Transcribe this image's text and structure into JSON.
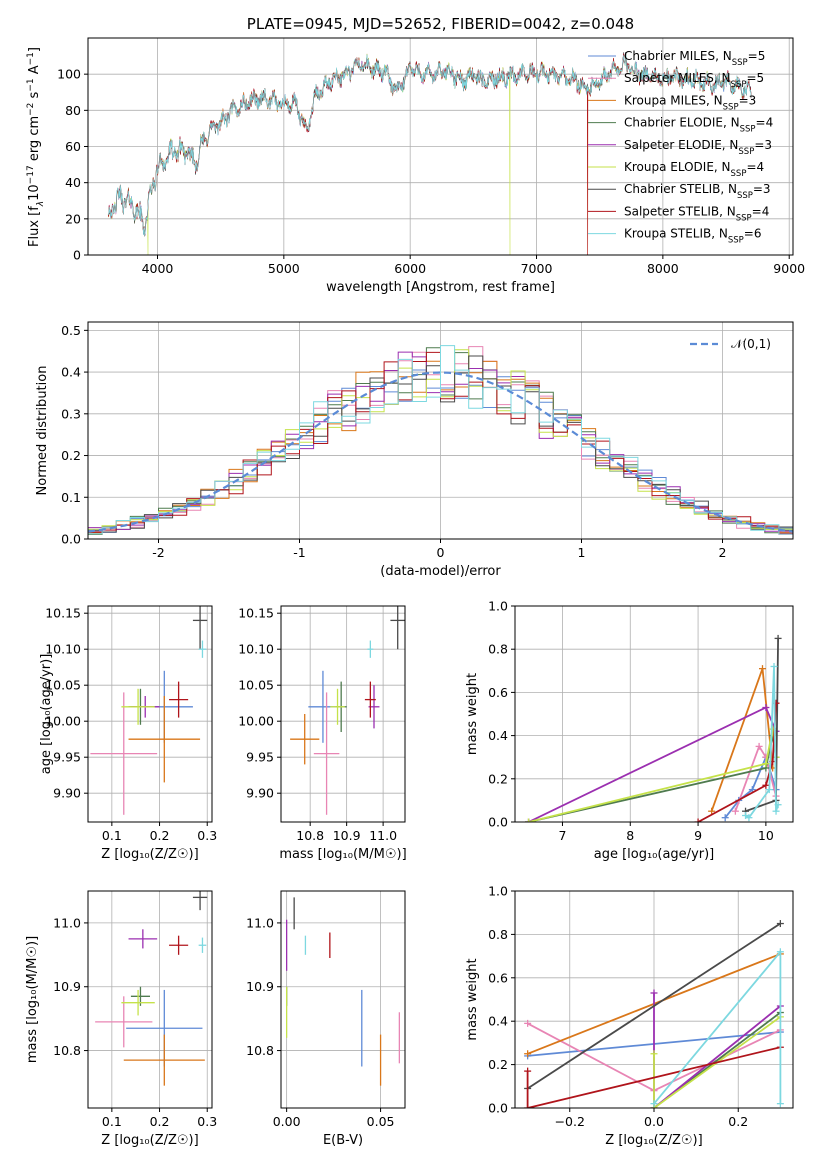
{
  "chart_data": [
    {
      "id": "spectrum",
      "type": "line",
      "title": "PLATE=0945, MJD=52652, FIBERID=0042, z=0.048",
      "xlabel": "wavelength [Angstrom, rest frame]",
      "ylabel_parts": [
        "Flux [f",
        "λ",
        "10",
        "−17",
        " erg cm",
        "−2",
        " s",
        "−1",
        " A",
        "−1",
        "]"
      ],
      "xlim": [
        3450,
        9030
      ],
      "ylim": [
        0,
        120
      ],
      "xticks": [
        4000,
        5000,
        6000,
        7000,
        8000,
        9000
      ],
      "yticks": [
        0,
        20,
        40,
        60,
        80,
        100
      ],
      "x_range_data": [
        3610,
        8700
      ],
      "anchors": [
        [
          3610,
          22
        ],
        [
          3700,
          32
        ],
        [
          3800,
          28
        ],
        [
          3900,
          17
        ],
        [
          3950,
          35
        ],
        [
          4000,
          48
        ],
        [
          4100,
          56
        ],
        [
          4200,
          58
        ],
        [
          4300,
          52
        ],
        [
          4400,
          68
        ],
        [
          4500,
          73
        ],
        [
          4600,
          80
        ],
        [
          4700,
          84
        ],
        [
          4800,
          87
        ],
        [
          4900,
          85
        ],
        [
          5000,
          84
        ],
        [
          5100,
          83
        ],
        [
          5175,
          68
        ],
        [
          5250,
          88
        ],
        [
          5400,
          98
        ],
        [
          5500,
          100
        ],
        [
          5600,
          106
        ],
        [
          5700,
          103
        ],
        [
          5800,
          101
        ],
        [
          5900,
          90
        ],
        [
          6000,
          104
        ],
        [
          6100,
          100
        ],
        [
          6200,
          100
        ],
        [
          6300,
          102
        ],
        [
          6400,
          96
        ],
        [
          6500,
          100
        ],
        [
          6560,
          96
        ],
        [
          6700,
          98
        ],
        [
          6800,
          99
        ],
        [
          7000,
          101
        ],
        [
          7100,
          100
        ],
        [
          7200,
          99
        ],
        [
          7300,
          97
        ],
        [
          7400,
          92
        ],
        [
          7500,
          95
        ],
        [
          7600,
          102
        ],
        [
          7700,
          106
        ],
        [
          7800,
          100
        ],
        [
          7900,
          99
        ],
        [
          8000,
          97
        ],
        [
          8100,
          98
        ],
        [
          8200,
          97
        ],
        [
          8300,
          96
        ],
        [
          8400,
          94
        ],
        [
          8500,
          96
        ],
        [
          8600,
          93
        ],
        [
          8700,
          90
        ]
      ],
      "dips": [
        {
          "series": "Kroupa ELODIE",
          "x": 3925
        },
        {
          "series": "Kroupa ELODIE",
          "x": 6790
        },
        {
          "series": "Kroupa MILES",
          "x": 7405
        },
        {
          "series": "Salpeter STELIB",
          "x": 7405
        }
      ],
      "legend_entries": [
        {
          "name": "Chabrier MILES",
          "nssp": "5"
        },
        {
          "name": "Salpeter MILES",
          "nssp": "5"
        },
        {
          "name": "Kroupa MILES",
          "nssp": "3"
        },
        {
          "name": "Chabrier ELODIE",
          "nssp": "4"
        },
        {
          "name": "Salpeter ELODIE",
          "nssp": "3"
        },
        {
          "name": "Kroupa ELODIE",
          "nssp": "4"
        },
        {
          "name": "Chabrier STELIB",
          "nssp": "3"
        },
        {
          "name": "Salpeter STELIB",
          "nssp": "4"
        },
        {
          "name": "Kroupa STELIB",
          "nssp": "6"
        }
      ],
      "nssp_prefix": "N",
      "nssp_sub": "SSP",
      "legend_position": "right"
    },
    {
      "id": "residuals",
      "type": "line",
      "xlabel": "(data-model)/error",
      "ylabel": "Normed distribution",
      "xlim": [
        -2.5,
        2.5
      ],
      "ylim": [
        0,
        0.52
      ],
      "xticks": [
        -2,
        -1,
        0,
        1,
        2
      ],
      "yticks": [
        0.0,
        0.1,
        0.2,
        0.3,
        0.4,
        0.5
      ],
      "ytick_labels": [
        "0.0",
        "0.1",
        "0.2",
        "0.3",
        "0.4",
        "0.5"
      ],
      "bin_width": 0.1,
      "grid": true,
      "normal_curve": {
        "label": "𝒩(0,1)",
        "mean": 0,
        "sigma": 1,
        "color": "#5b8bd6"
      },
      "legend_position": "top-right"
    },
    {
      "id": "age_vs_Z",
      "type": "scatter",
      "xlabel": "Z [log₁₀(Z/Z☉)]",
      "ylabel": "age  [log₁₀(age/yr)]",
      "xlim": [
        0.05,
        0.31
      ],
      "ylim": [
        9.86,
        10.16
      ],
      "xticks": [
        0.1,
        0.2,
        0.3
      ],
      "yticks": [
        9.9,
        9.95,
        10.0,
        10.05,
        10.1,
        10.15
      ],
      "ytick_labels": [
        "9.90",
        "9.95",
        "10.00",
        "10.05",
        "10.10",
        "10.15"
      ],
      "points": [
        {
          "series": "Chabrier MILES",
          "x": 0.21,
          "y": 10.02,
          "xerr": 0.06,
          "yerr": 0.05
        },
        {
          "series": "Salpeter MILES",
          "x": 0.125,
          "y": 9.955,
          "xerr": 0.07,
          "yerr": 0.085
        },
        {
          "series": "Kroupa MILES",
          "x": 0.21,
          "y": 9.975,
          "xerr": 0.075,
          "yerr": 0.06
        },
        {
          "series": "Chabrier ELODIE",
          "x": 0.16,
          "y": 10.02,
          "xerr": 0.025,
          "yerr": 0.025
        },
        {
          "series": "Salpeter ELODIE",
          "x": 0.17,
          "y": 10.02,
          "xerr": 0.03,
          "yerr": 0.015
        },
        {
          "series": "Kroupa ELODIE",
          "x": 0.155,
          "y": 10.02,
          "xerr": 0.035,
          "yerr": 0.025
        },
        {
          "series": "Chabrier STELIB",
          "x": 0.285,
          "y": 10.14,
          "xerr": 0.015,
          "yerr": 0.04
        },
        {
          "series": "Salpeter STELIB",
          "x": 0.24,
          "y": 10.03,
          "xerr": 0.02,
          "yerr": 0.025
        },
        {
          "series": "Kroupa STELIB",
          "x": 0.29,
          "y": 10.1,
          "xerr": 0.008,
          "yerr": 0.012
        }
      ]
    },
    {
      "id": "age_vs_mass",
      "type": "scatter",
      "xlabel": "mass [log₁₀(M/M☉)]",
      "xlim": [
        10.72,
        11.06
      ],
      "ylim": [
        9.86,
        10.16
      ],
      "xticks": [
        10.8,
        10.9,
        11.0
      ],
      "xtick_labels": [
        "10.8",
        "10.9",
        "11.0"
      ],
      "yticks": [
        9.9,
        9.95,
        10.0,
        10.05,
        10.1,
        10.15
      ],
      "ytick_labels": [
        "9.90",
        "9.95",
        "10.00",
        "10.05",
        "10.10",
        "10.15"
      ],
      "points": [
        {
          "series": "Chabrier MILES",
          "x": 10.835,
          "y": 10.02,
          "xerr": 0.04,
          "yerr": 0.05
        },
        {
          "series": "Salpeter MILES",
          "x": 10.845,
          "y": 9.955,
          "xerr": 0.035,
          "yerr": 0.085
        },
        {
          "series": "Kroupa MILES",
          "x": 10.785,
          "y": 9.975,
          "xerr": 0.04,
          "yerr": 0.035
        },
        {
          "series": "Chabrier ELODIE",
          "x": 10.885,
          "y": 10.02,
          "xerr": 0.015,
          "yerr": 0.035
        },
        {
          "series": "Salpeter ELODIE",
          "x": 10.975,
          "y": 10.02,
          "xerr": 0.015,
          "yerr": 0.03
        },
        {
          "series": "Kroupa ELODIE",
          "x": 10.875,
          "y": 10.02,
          "xerr": 0.02,
          "yerr": 0.025
        },
        {
          "series": "Chabrier STELIB",
          "x": 11.04,
          "y": 10.14,
          "xerr": 0.02,
          "yerr": 0.04
        },
        {
          "series": "Salpeter STELIB",
          "x": 10.965,
          "y": 10.03,
          "xerr": 0.015,
          "yerr": 0.025
        },
        {
          "series": "Kroupa STELIB",
          "x": 10.965,
          "y": 10.1,
          "xerr": 0.008,
          "yerr": 0.012
        }
      ]
    },
    {
      "id": "weight_vs_age",
      "type": "line",
      "xlabel": "age  [log₁₀(age/yr)]",
      "ylabel": "mass weight",
      "xlim": [
        6.3,
        10.4
      ],
      "ylim": [
        0,
        1
      ],
      "xticks": [
        7,
        8,
        9,
        10
      ],
      "yticks": [
        0.0,
        0.2,
        0.4,
        0.6,
        0.8,
        1.0
      ],
      "ytick_labels": [
        "0.0",
        "0.2",
        "0.4",
        "0.6",
        "0.8",
        "1.0"
      ],
      "grid": true,
      "series": [
        {
          "name": "Chabrier MILES",
          "x": [
            9.4,
            9.6,
            9.8,
            10.0,
            10.15
          ],
          "y": [
            0.02,
            0.1,
            0.15,
            0.3,
            0.15
          ]
        },
        {
          "name": "Salpeter MILES",
          "x": [
            9.55,
            9.9,
            10.0,
            10.15
          ],
          "y": [
            0.05,
            0.35,
            0.3,
            0.12
          ]
        },
        {
          "name": "Kroupa MILES",
          "x": [
            9.2,
            9.95,
            10.1
          ],
          "y": [
            0.05,
            0.71,
            0.25
          ]
        },
        {
          "name": "Chabrier ELODIE",
          "x": [
            6.5,
            10.0,
            10.1,
            10.15
          ],
          "y": [
            0.0,
            0.25,
            0.4,
            0.3
          ]
        },
        {
          "name": "Salpeter ELODIE",
          "x": [
            6.5,
            10.0,
            10.15
          ],
          "y": [
            0.0,
            0.53,
            0.42
          ]
        },
        {
          "name": "Kroupa ELODIE",
          "x": [
            6.5,
            10.0,
            10.1,
            10.15
          ],
          "y": [
            0.0,
            0.27,
            0.43,
            0.3
          ]
        },
        {
          "name": "Chabrier STELIB",
          "x": [
            9.7,
            10.15,
            10.18
          ],
          "y": [
            0.05,
            0.1,
            0.85
          ]
        },
        {
          "name": "Salpeter STELIB",
          "x": [
            9.0,
            10.0,
            10.1,
            10.15
          ],
          "y": [
            0.0,
            0.17,
            0.28,
            0.55
          ]
        },
        {
          "name": "Kroupa STELIB",
          "x": [
            9.7,
            9.75,
            10.05,
            10.12,
            10.15,
            10.18
          ],
          "y": [
            0.03,
            0.02,
            0.15,
            0.72,
            0.05,
            0.08
          ]
        }
      ]
    },
    {
      "id": "mass_vs_Z",
      "type": "scatter",
      "xlabel": "Z [log₁₀(Z/Z☉)]",
      "ylabel": "mass [log₁₀(M/M☉)]",
      "xlim": [
        0.05,
        0.31
      ],
      "ylim": [
        10.71,
        11.05
      ],
      "xticks": [
        0.1,
        0.2,
        0.3
      ],
      "yticks": [
        10.8,
        10.9,
        11.0
      ],
      "ytick_labels": [
        "10.8",
        "10.9",
        "11.0"
      ],
      "points": [
        {
          "series": "Chabrier MILES",
          "x": 0.21,
          "y": 10.835,
          "xerr": 0.08,
          "yerr": 0.06
        },
        {
          "series": "Salpeter MILES",
          "x": 0.125,
          "y": 10.845,
          "xerr": 0.06,
          "yerr": 0.04
        },
        {
          "series": "Kroupa MILES",
          "x": 0.21,
          "y": 10.785,
          "xerr": 0.085,
          "yerr": 0.04
        },
        {
          "series": "Chabrier ELODIE",
          "x": 0.16,
          "y": 10.885,
          "xerr": 0.02,
          "yerr": 0.015
        },
        {
          "series": "Salpeter ELODIE",
          "x": 0.165,
          "y": 10.975,
          "xerr": 0.03,
          "yerr": 0.015
        },
        {
          "series": "Kroupa ELODIE",
          "x": 0.155,
          "y": 10.875,
          "xerr": 0.035,
          "yerr": 0.02
        },
        {
          "series": "Chabrier STELIB",
          "x": 0.285,
          "y": 11.04,
          "xerr": 0.015,
          "yerr": 0.02
        },
        {
          "series": "Salpeter STELIB",
          "x": 0.24,
          "y": 10.965,
          "xerr": 0.02,
          "yerr": 0.015
        },
        {
          "series": "Kroupa STELIB",
          "x": 0.29,
          "y": 10.965,
          "xerr": 0.008,
          "yerr": 0.012
        }
      ]
    },
    {
      "id": "mass_vs_EBV",
      "type": "scatter",
      "xlabel": "E(B-V)",
      "xlim": [
        -0.003,
        0.063
      ],
      "ylim": [
        10.71,
        11.05
      ],
      "xticks": [
        0.0,
        0.05
      ],
      "xtick_labels": [
        "0.00",
        "0.05"
      ],
      "yticks": [
        10.8,
        10.9,
        11.0
      ],
      "ytick_labels": [
        "10.8",
        "10.9",
        "11.0"
      ],
      "points": [
        {
          "series": "Chabrier MILES",
          "x": 0.04,
          "y": 10.835,
          "xerr": 0,
          "yerr": 0.06
        },
        {
          "series": "Salpeter MILES",
          "x": 0.06,
          "y": 10.82,
          "xerr": 0,
          "yerr": 0.04
        },
        {
          "series": "Kroupa MILES",
          "x": 0.05,
          "y": 10.785,
          "xerr": 0,
          "yerr": 0.04
        },
        {
          "series": "Chabrier ELODIE",
          "x": 0.0,
          "y": 10.885,
          "xerr": 0,
          "yerr": 0.015
        },
        {
          "series": "Salpeter ELODIE",
          "x": 0.0,
          "y": 10.965,
          "xerr": 0,
          "yerr": 0.04
        },
        {
          "series": "Kroupa ELODIE",
          "x": 0.0,
          "y": 10.86,
          "xerr": 0,
          "yerr": 0.04
        },
        {
          "series": "Chabrier STELIB",
          "x": 0.004,
          "y": 11.015,
          "xerr": 0,
          "yerr": 0.025
        },
        {
          "series": "Salpeter STELIB",
          "x": 0.023,
          "y": 10.965,
          "xerr": 0,
          "yerr": 0.02
        },
        {
          "series": "Kroupa STELIB",
          "x": 0.01,
          "y": 10.965,
          "xerr": 0,
          "yerr": 0.015
        }
      ]
    },
    {
      "id": "weight_vs_Z",
      "type": "line",
      "xlabel": "Z [log₁₀(Z/Z☉)]",
      "ylabel": "mass weight",
      "xlim": [
        -0.33,
        0.33
      ],
      "ylim": [
        0,
        1
      ],
      "xticks": [
        -0.2,
        0.0,
        0.2
      ],
      "xtick_labels": [
        "−0.2",
        "0.0",
        "0.2"
      ],
      "yticks": [
        0.0,
        0.2,
        0.4,
        0.6,
        0.8,
        1.0
      ],
      "ytick_labels": [
        "0.0",
        "0.2",
        "0.4",
        "0.6",
        "0.8",
        "1.0"
      ],
      "grid": true,
      "series": [
        {
          "name": "Chabrier MILES",
          "x": [
            -0.3,
            0.3
          ],
          "y": [
            0.24,
            0.35
          ]
        },
        {
          "name": "Salpeter MILES",
          "x": [
            -0.3,
            0.0,
            0.3
          ],
          "y": [
            0.39,
            0.08,
            0.36
          ]
        },
        {
          "name": "Kroupa MILES",
          "x": [
            -0.3,
            0.3
          ],
          "y": [
            0.25,
            0.71
          ]
        },
        {
          "name": "Chabrier ELODIE",
          "x": [
            0.0,
            0.3
          ],
          "y": [
            0.0,
            0.44
          ]
        },
        {
          "name": "Salpeter ELODIE",
          "x": [
            0.0,
            0.0,
            0.3
          ],
          "y": [
            0.53,
            0.0,
            0.47
          ]
        },
        {
          "name": "Kroupa ELODIE",
          "x": [
            0.0,
            0.0,
            0.3
          ],
          "y": [
            0.25,
            0.0,
            0.42
          ]
        },
        {
          "name": "Chabrier STELIB",
          "x": [
            -0.3,
            0.3
          ],
          "y": [
            0.09,
            0.85
          ]
        },
        {
          "name": "Salpeter STELIB",
          "x": [
            -0.3,
            -0.3,
            0.3
          ],
          "y": [
            0.17,
            0.0,
            0.28
          ]
        },
        {
          "name": "Kroupa STELIB",
          "x": [
            0.0,
            0.3,
            0.3
          ],
          "y": [
            0.02,
            0.72,
            0.02
          ]
        }
      ]
    }
  ],
  "series_colors": {
    "Chabrier MILES": "#5f8ad6",
    "Salpeter MILES": "#e885b4",
    "Kroupa MILES": "#d9771a",
    "Chabrier ELODIE": "#4f7b4f",
    "Salpeter ELODIE": "#9b2fb0",
    "Kroupa ELODIE": "#c5e24a",
    "Chabrier STELIB": "#4a4a4a",
    "Salpeter STELIB": "#b0141b",
    "Kroupa STELIB": "#7dd8e0"
  }
}
